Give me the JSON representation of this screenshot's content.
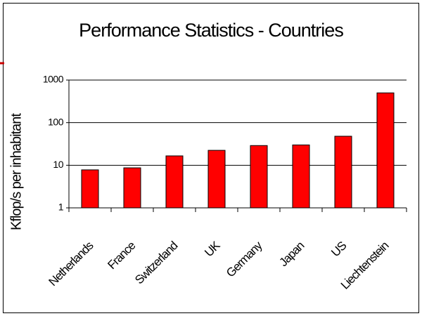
{
  "chart_data": {
    "type": "bar",
    "title": "Performance Statistics - Countries",
    "y_label": "Kflop/s per inhabitant",
    "categories": [
      "Netherlands",
      "France",
      "Switzerland",
      "UK",
      "Germany",
      "Japan",
      "US",
      "Liechtenstein"
    ],
    "values": [
      7.8,
      8.7,
      16.6,
      22.4,
      29,
      30,
      48,
      500
    ],
    "color": "#ff0000",
    "ylim": [
      1,
      1000
    ],
    "yticks": [
      1,
      10,
      100,
      1000
    ],
    "log_scale": true,
    "grid": true
  }
}
